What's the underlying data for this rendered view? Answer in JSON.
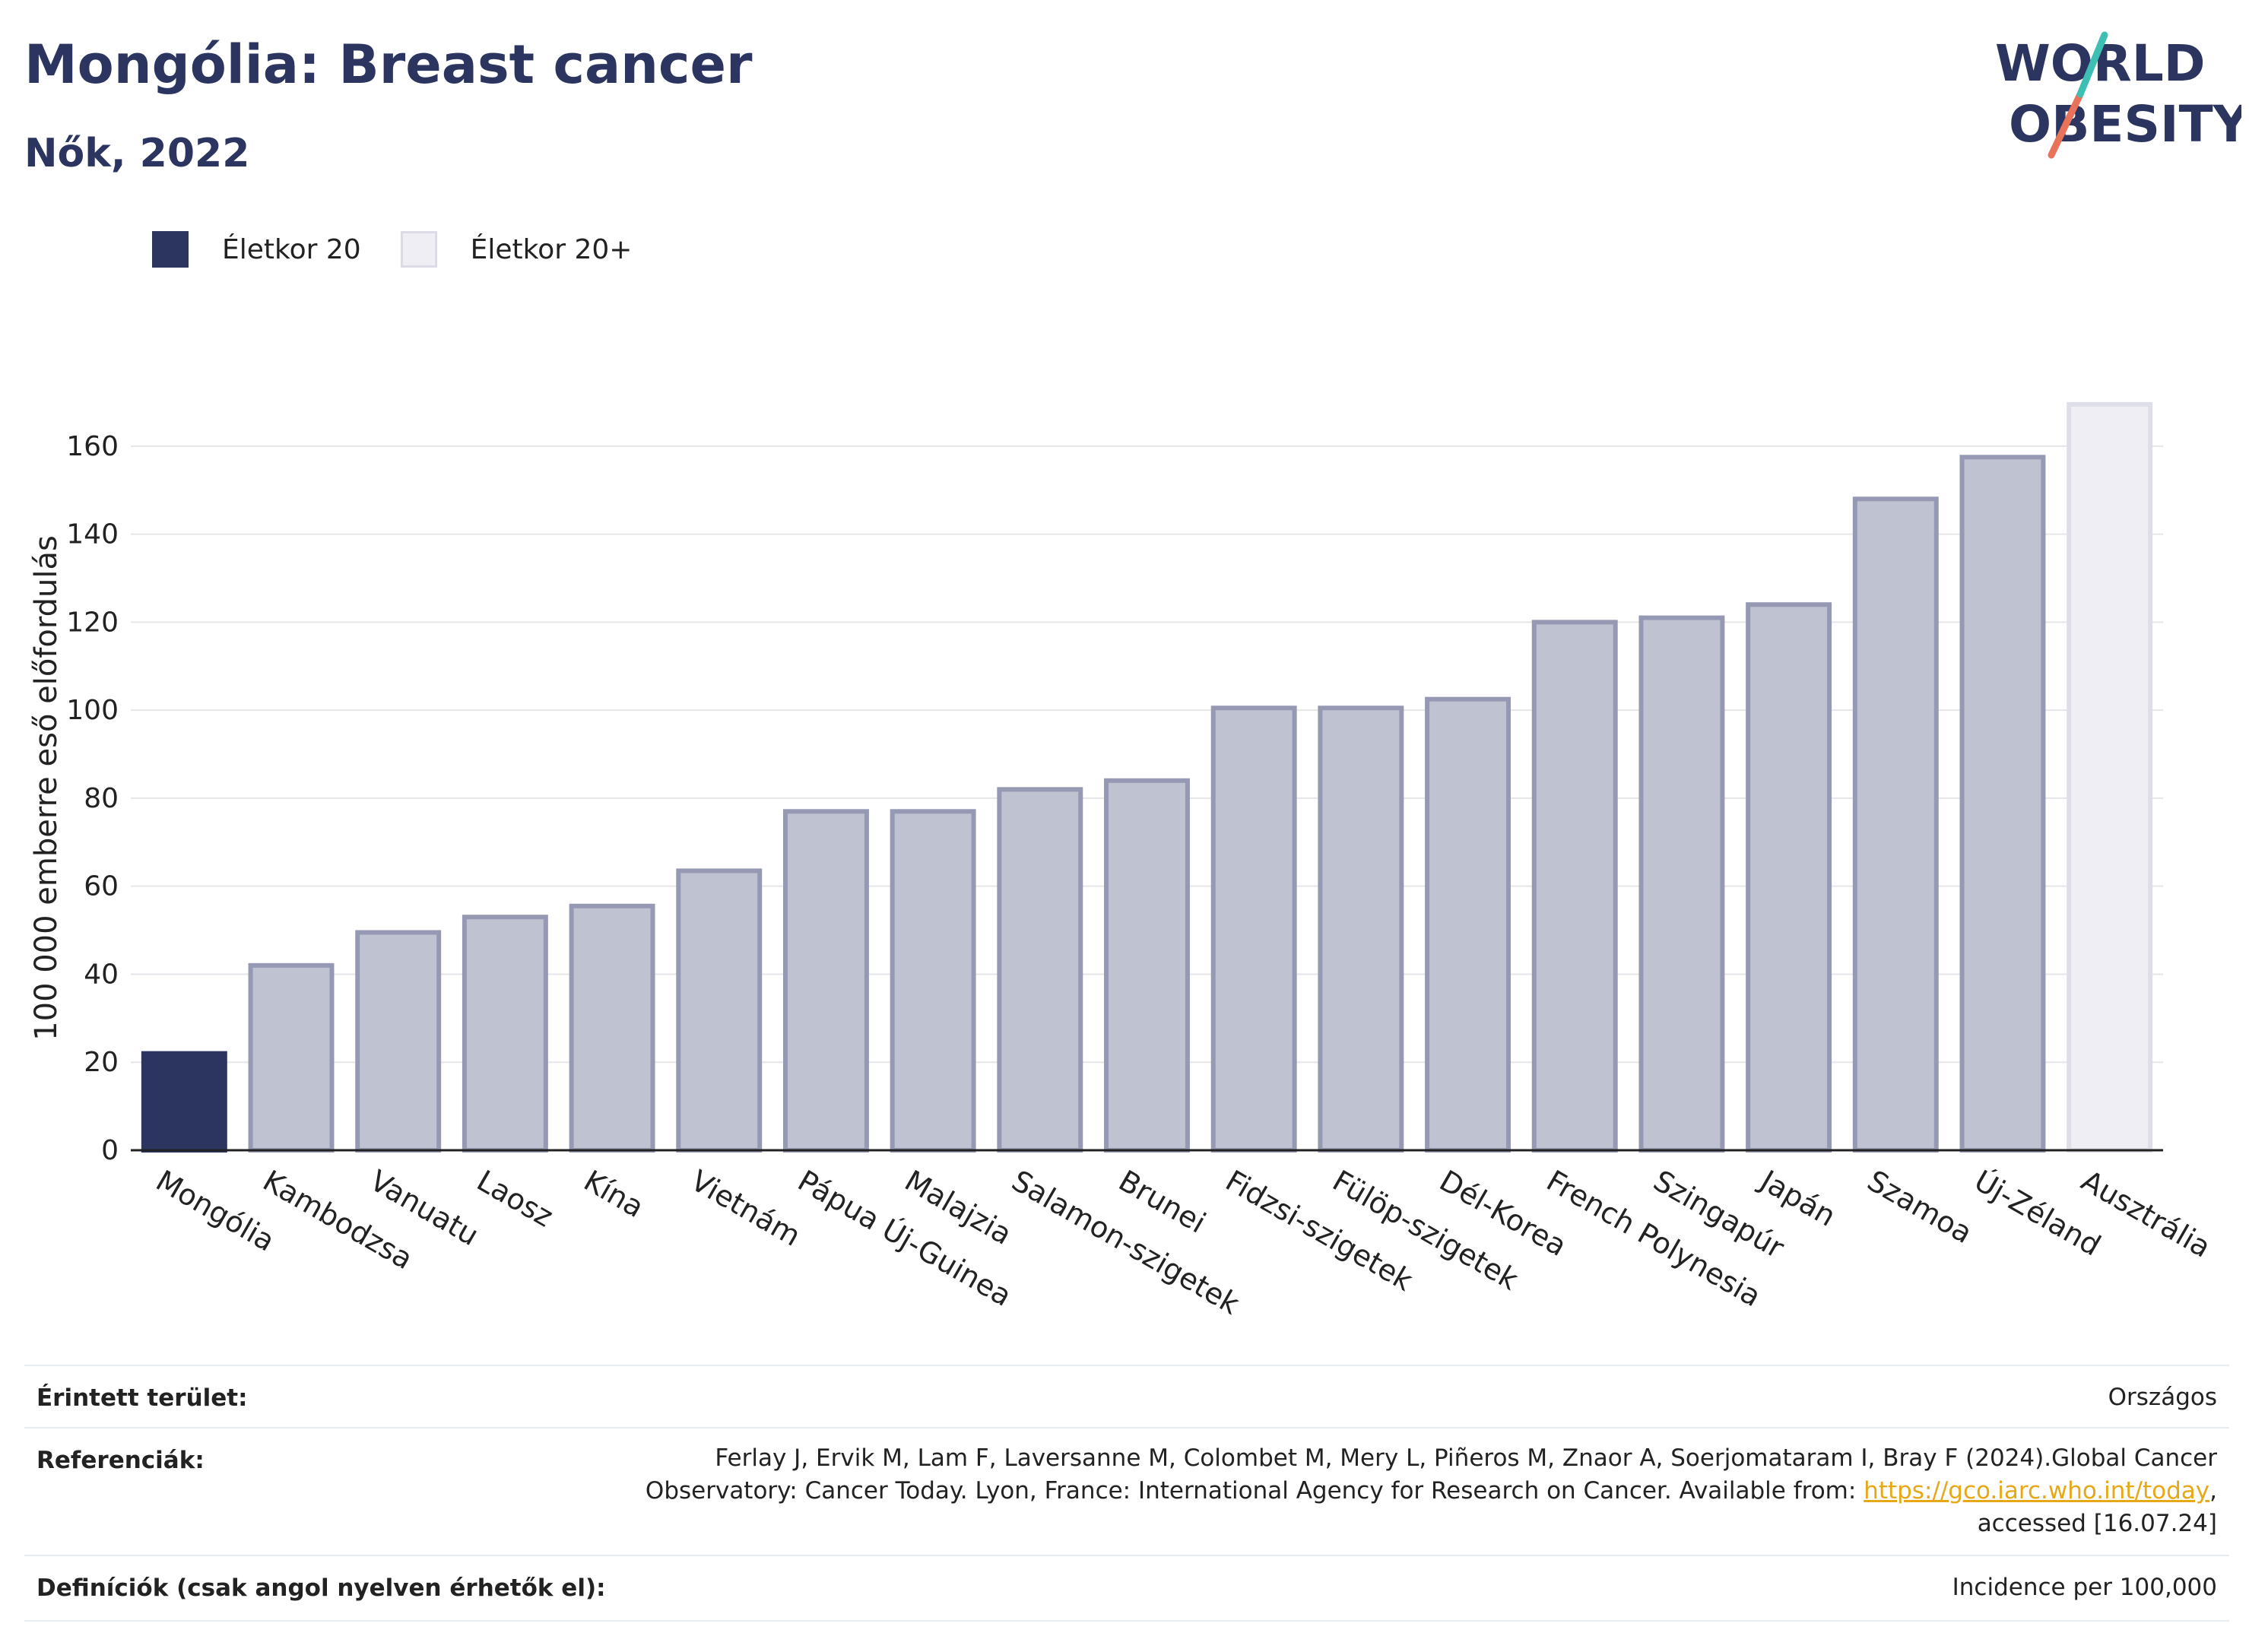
{
  "header": {
    "title": "Mongólia: Breast cancer",
    "subtitle": "Nők, 2022"
  },
  "logo": {
    "line1": "WORLD",
    "line2": "OBESITY",
    "icon": "world-obesity-logo"
  },
  "legend": [
    {
      "label": "Életkor 20",
      "color": "#2b3560"
    },
    {
      "label": "Életkor 20+",
      "color": "#eeeef4"
    }
  ],
  "chart_data": {
    "type": "bar",
    "ylabel": "100 000 emberre eső előfordulás",
    "ylim": [
      0,
      175
    ],
    "yticks": [
      0,
      20,
      40,
      60,
      80,
      100,
      120,
      140,
      160
    ],
    "grid": true,
    "categories": [
      "Mongólia",
      "Kambodzsa",
      "Vanuatu",
      "Laosz",
      "Kína",
      "Vietnám",
      "Pápua Új-Guinea",
      "Malajzia",
      "Salamon-szigetek",
      "Brunei",
      "Fidzsi-szigetek",
      "Fülöp-szigetek",
      "Dél-Korea",
      "French Polynesia",
      "Szingapúr",
      "Japán",
      "Szamoa",
      "Új-Zéland",
      "Ausztrália"
    ],
    "values": [
      22,
      42,
      49.5,
      53,
      55.5,
      63.5,
      77,
      77,
      82,
      84,
      100.5,
      100.5,
      102.5,
      120,
      121,
      124,
      148,
      157.5,
      169.5
    ],
    "bar_styles": [
      "highlight",
      "normal",
      "normal",
      "normal",
      "normal",
      "normal",
      "normal",
      "normal",
      "normal",
      "normal",
      "normal",
      "normal",
      "normal",
      "normal",
      "normal",
      "normal",
      "normal",
      "normal",
      "light"
    ],
    "colors": {
      "highlight": "#2b3560",
      "normal": "#bfc2d0",
      "normal_stroke": "#9599b3",
      "light": "#eeeef4",
      "light_stroke": "#dedee8"
    }
  },
  "info": {
    "area_label": "Érintett terület:",
    "area_value": "Országos",
    "ref_label": "Referenciák:",
    "ref_line1": "Ferlay J, Ervik M, Lam F, Laversanne M, Colombet M, Mery L, Piñeros M, Znaor A, Soerjomataram I, Bray F (2024).Global Cancer",
    "ref_line2_pre": "Observatory: Cancer Today. Lyon, France: International Agency for Research on Cancer. Available from: ",
    "ref_link": "https://gco.iarc.who.int/today",
    "ref_line2_post": ",",
    "ref_line3": "accessed [16.07.24]",
    "def_label": "Definíciók (csak angol nyelven érhetők el):",
    "def_value": "Incidence per 100,000"
  }
}
